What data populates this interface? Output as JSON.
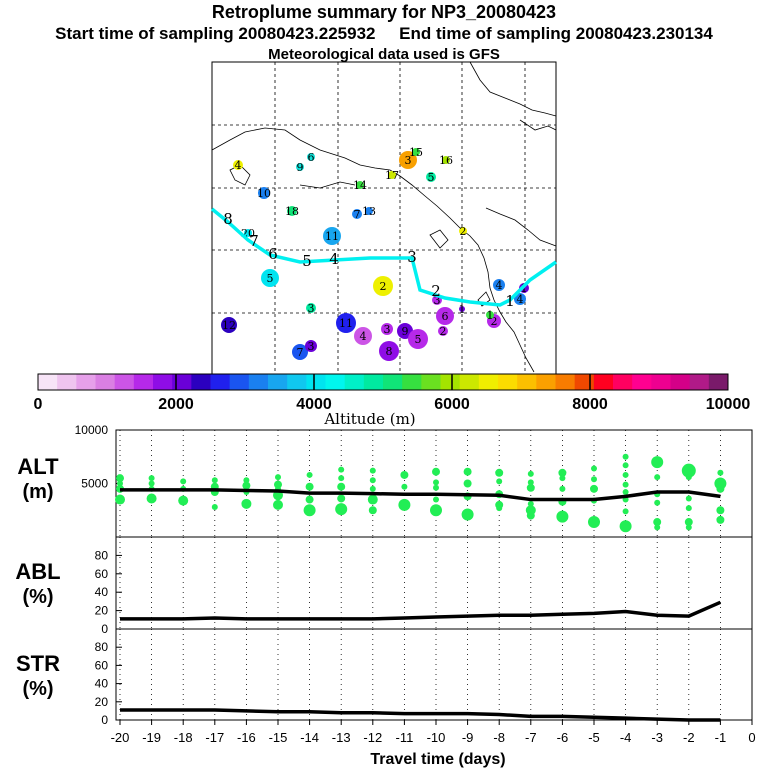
{
  "header": {
    "title": "Retroplume summary for NP3_20080423",
    "start_label": "Start time of sampling 20080423.225932",
    "end_label": "End time of sampling 20080423.230134",
    "met_label": "Meteorological data used is GFS"
  },
  "colorbar": {
    "ticks": [
      "0",
      "2000",
      "4000",
      "6000",
      "8000",
      "10000"
    ],
    "label": "Altitude (m)",
    "colors": [
      "#f7e4f7",
      "#efc4ef",
      "#e6a0ea",
      "#da7fe3",
      "#cc55e6",
      "#b629e9",
      "#8f0de6",
      "#6a00d8",
      "#2b00bf",
      "#2020ee",
      "#1a55f0",
      "#1a80f0",
      "#18a6ef",
      "#10c8ef",
      "#00e4f0",
      "#00f6ee",
      "#00f0c8",
      "#00eaa0",
      "#10e478",
      "#36e040",
      "#6ae020",
      "#a4e400",
      "#cce800",
      "#f0ee00",
      "#fcdc00",
      "#fcc000",
      "#fba000",
      "#f87c00",
      "#f04800",
      "#ff0020",
      "#ff0060",
      "#ff0090",
      "#ee0090",
      "#d40088",
      "#b01a88",
      "#7a1a6a"
    ]
  },
  "map": {
    "path_labels": [
      "8",
      "7",
      "6",
      "5",
      "4",
      "3",
      "2",
      "1"
    ],
    "markers": [
      {
        "label": "4",
        "color": "#eef000"
      },
      {
        "label": "6",
        "color": "#10e0d8"
      },
      {
        "label": "9",
        "color": "#10e0d8"
      },
      {
        "label": "3",
        "color": "#f8a000"
      },
      {
        "label": "15",
        "color": "#36e040"
      },
      {
        "label": "16",
        "color": "#a4e400"
      },
      {
        "label": "17",
        "color": "#cce800"
      },
      {
        "label": "5",
        "color": "#00eaa0"
      },
      {
        "label": "14",
        "color": "#36e040"
      },
      {
        "label": "10",
        "color": "#1a80f0"
      },
      {
        "label": "18",
        "color": "#10e478"
      },
      {
        "label": "7",
        "color": "#1a80f0"
      },
      {
        "label": "13",
        "color": "#1a80f0"
      },
      {
        "label": "20",
        "color": "#00e4f0"
      },
      {
        "label": "11",
        "color": "#18a6ef"
      },
      {
        "label": "5",
        "color": "#00e4f0"
      },
      {
        "label": "2",
        "color": "#eef000"
      },
      {
        "label": "3",
        "color": "#00eaa0"
      },
      {
        "label": "12",
        "color": "#2b00bf"
      },
      {
        "label": "7",
        "color": "#1a55f0"
      },
      {
        "label": "3",
        "color": "#6a00d8"
      },
      {
        "label": "11",
        "color": "#2020ee"
      },
      {
        "label": "4",
        "color": "#cc55e6"
      },
      {
        "label": "3",
        "color": "#b629e9"
      },
      {
        "label": "8",
        "color": "#8f0de6"
      },
      {
        "label": "9",
        "color": "#6a00d8"
      },
      {
        "label": "5",
        "color": "#b629e9"
      },
      {
        "label": "6",
        "color": "#b629e9"
      },
      {
        "label": "2",
        "color": "#b629e9"
      },
      {
        "label": "2",
        "color": "#b629e9"
      },
      {
        "label": "4",
        "color": "#1a80f0"
      },
      {
        "label": "4",
        "color": "#1a80f0"
      },
      {
        "label": "1",
        "color": "#6a00d8"
      },
      {
        "label": "1",
        "color": "#36e040"
      },
      {
        "label": "3",
        "color": "#b629e9"
      },
      {
        "label": "1",
        "color": "#6a00d8"
      },
      {
        "label": "2",
        "color": "#eef000"
      }
    ]
  },
  "chart_data": [
    {
      "type": "scatter",
      "title": "ALT (m)",
      "panel_label_top": "ALT",
      "panel_label_bottom": "(m)",
      "ylim": [
        0,
        10000
      ],
      "yticks": [
        "10000",
        "5000"
      ],
      "xlim": [
        -20,
        0
      ],
      "mean_line": {
        "x": [
          -20,
          -19,
          -18,
          -17,
          -16,
          -15,
          -14,
          -13,
          -12,
          -11,
          -10,
          -9,
          -8,
          -7,
          -6,
          -5,
          -4,
          -3,
          -2,
          -1
        ],
        "y": [
          4400,
          4400,
          4400,
          4400,
          4350,
          4300,
          4100,
          4100,
          4050,
          4000,
          4000,
          3950,
          3900,
          3500,
          3500,
          3500,
          3800,
          4200,
          4200,
          3800
        ]
      },
      "points": [
        [
          -20,
          5500,
          4
        ],
        [
          -20,
          5000,
          3
        ],
        [
          -20,
          4500,
          4
        ],
        [
          -20,
          3500,
          5
        ],
        [
          -19,
          5500,
          3
        ],
        [
          -19,
          5000,
          3
        ],
        [
          -19,
          4500,
          3
        ],
        [
          -19,
          3600,
          5
        ],
        [
          -18,
          5200,
          3
        ],
        [
          -18,
          4500,
          3
        ],
        [
          -18,
          3400,
          5
        ],
        [
          -17,
          5300,
          3
        ],
        [
          -17,
          4700,
          4
        ],
        [
          -17,
          4200,
          4
        ],
        [
          -17,
          2800,
          3
        ],
        [
          -16,
          5300,
          3
        ],
        [
          -16,
          4800,
          4
        ],
        [
          -16,
          4200,
          3
        ],
        [
          -16,
          3100,
          5
        ],
        [
          -15,
          5600,
          3
        ],
        [
          -15,
          4900,
          4
        ],
        [
          -15,
          4500,
          3
        ],
        [
          -15,
          3900,
          5
        ],
        [
          -15,
          3000,
          5
        ],
        [
          -14,
          5800,
          3
        ],
        [
          -14,
          4700,
          4
        ],
        [
          -14,
          3500,
          4
        ],
        [
          -14,
          2500,
          6
        ],
        [
          -13,
          6300,
          3
        ],
        [
          -13,
          5500,
          3
        ],
        [
          -13,
          4700,
          4
        ],
        [
          -13,
          3600,
          4
        ],
        [
          -13,
          2600,
          6
        ],
        [
          -12,
          6200,
          3
        ],
        [
          -12,
          5300,
          3
        ],
        [
          -12,
          4500,
          3
        ],
        [
          -12,
          3500,
          5
        ],
        [
          -12,
          2500,
          4
        ],
        [
          -11,
          5800,
          4
        ],
        [
          -11,
          4700,
          3
        ],
        [
          -11,
          3000,
          6
        ],
        [
          -10,
          6100,
          4
        ],
        [
          -10,
          5100,
          3
        ],
        [
          -10,
          4600,
          3
        ],
        [
          -10,
          3500,
          3
        ],
        [
          -10,
          2500,
          6
        ],
        [
          -9,
          6100,
          4
        ],
        [
          -9,
          5000,
          4
        ],
        [
          -9,
          3800,
          4
        ],
        [
          -9,
          2100,
          6
        ],
        [
          -8,
          6000,
          4
        ],
        [
          -8,
          5200,
          3
        ],
        [
          -8,
          4000,
          4
        ],
        [
          -8,
          3000,
          4
        ],
        [
          -8,
          2700,
          3
        ],
        [
          -7,
          5900,
          3
        ],
        [
          -7,
          5100,
          3
        ],
        [
          -7,
          4600,
          4
        ],
        [
          -7,
          3100,
          3
        ],
        [
          -7,
          2500,
          5
        ],
        [
          -7,
          2000,
          4
        ],
        [
          -6,
          6000,
          4
        ],
        [
          -6,
          5500,
          3
        ],
        [
          -6,
          4500,
          3
        ],
        [
          -6,
          3300,
          4
        ],
        [
          -6,
          1900,
          6
        ],
        [
          -5,
          6400,
          3
        ],
        [
          -5,
          5400,
          3
        ],
        [
          -5,
          4500,
          4
        ],
        [
          -5,
          3400,
          3
        ],
        [
          -5,
          1400,
          6
        ],
        [
          -4,
          7500,
          3
        ],
        [
          -4,
          6700,
          3
        ],
        [
          -4,
          5800,
          3
        ],
        [
          -4,
          4900,
          3
        ],
        [
          -4,
          4200,
          3
        ],
        [
          -4,
          3500,
          3
        ],
        [
          -4,
          2400,
          3
        ],
        [
          -4,
          1000,
          6
        ],
        [
          -3,
          7000,
          6
        ],
        [
          -3,
          5600,
          3
        ],
        [
          -3,
          4000,
          3
        ],
        [
          -3,
          3200,
          3
        ],
        [
          -3,
          1400,
          4
        ],
        [
          -3,
          900,
          3
        ],
        [
          -2,
          6200,
          7
        ],
        [
          -2,
          5600,
          3
        ],
        [
          -2,
          3600,
          3
        ],
        [
          -2,
          2700,
          3
        ],
        [
          -2,
          1400,
          4
        ],
        [
          -2,
          900,
          3
        ],
        [
          -1,
          6000,
          3
        ],
        [
          -1,
          5000,
          6
        ],
        [
          -1,
          4500,
          4
        ],
        [
          -1,
          2500,
          4
        ],
        [
          -1,
          1600,
          4
        ]
      ],
      "xlabel": ""
    },
    {
      "type": "line",
      "title": "ABL (%)",
      "panel_label_top": "ABL",
      "panel_label_bottom": "(%)",
      "ylim": [
        0,
        100
      ],
      "yticks": [
        "80",
        "60",
        "40",
        "20",
        "0"
      ],
      "x": [
        -20,
        -19,
        -18,
        -17,
        -16,
        -15,
        -14,
        -13,
        -12,
        -11,
        -10,
        -9,
        -8,
        -7,
        -6,
        -5,
        -4,
        -3,
        -2,
        -1
      ],
      "y": [
        11,
        11,
        11,
        12,
        11,
        11,
        11,
        11,
        11,
        12,
        13,
        14,
        15,
        15,
        16,
        17,
        19,
        15,
        14,
        29
      ]
    },
    {
      "type": "line",
      "title": "STR (%)",
      "panel_label_top": "STR",
      "panel_label_bottom": "(%)",
      "ylim": [
        0,
        100
      ],
      "yticks": [
        "80",
        "60",
        "40",
        "20",
        "0"
      ],
      "x": [
        -20,
        -19,
        -18,
        -17,
        -16,
        -15,
        -14,
        -13,
        -12,
        -11,
        -10,
        -9,
        -8,
        -7,
        -6,
        -5,
        -4,
        -3,
        -2,
        -1
      ],
      "y": [
        11,
        11,
        11,
        11,
        10,
        9,
        9,
        8,
        8,
        7,
        7,
        7,
        6,
        4,
        4,
        3,
        2,
        1,
        0,
        0
      ],
      "xlabel": "Travel time (days)",
      "xticks": [
        "-20",
        "-19",
        "-18",
        "-17",
        "-16",
        "-15",
        "-14",
        "-13",
        "-12",
        "-11",
        "-10",
        "-9",
        "-8",
        "-7",
        "-6",
        "-5",
        "-4",
        "-3",
        "-2",
        "-1",
        "0"
      ]
    }
  ]
}
